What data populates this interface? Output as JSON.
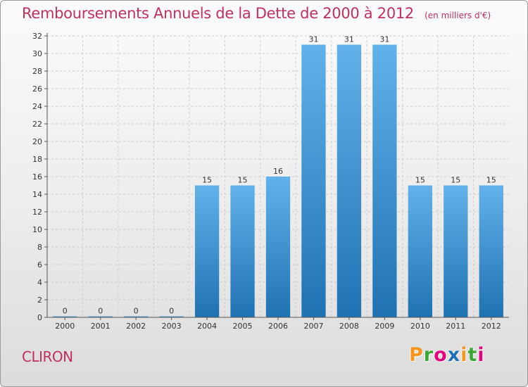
{
  "header": {
    "title": "Remboursements Annuels de la Dette de 2000 à 2012",
    "subtitle": "(en milliers d'€)"
  },
  "footer": {
    "commune": "CLIRON",
    "brand": "Proxiti",
    "brand_colors": [
      "#f7941d",
      "#3aa935",
      "#e6007e",
      "#1d71b8",
      "#f7941d",
      "#3aa935",
      "#e6007e"
    ]
  },
  "colors": {
    "title": "#c0305e",
    "bar_top": "#62b1ea",
    "bar_bottom": "#1f72b2",
    "grid": "#cccccc",
    "axis": "#555555"
  },
  "chart_data": {
    "type": "bar",
    "title": "Remboursements Annuels de la Dette de 2000 à 2012",
    "subtitle": "(en milliers d'€)",
    "xlabel": "",
    "ylabel": "",
    "categories": [
      "2000",
      "2001",
      "2002",
      "2003",
      "2004",
      "2005",
      "2006",
      "2007",
      "2008",
      "2009",
      "2010",
      "2011",
      "2012"
    ],
    "values": [
      0,
      0,
      0,
      0,
      15,
      15,
      16,
      31,
      31,
      31,
      15,
      15,
      15
    ],
    "data_labels": [
      "0",
      "0",
      "0",
      "0",
      "15",
      "15",
      "16",
      "31",
      "31",
      "31",
      "15",
      "15",
      "15"
    ],
    "ylim": [
      0,
      32
    ],
    "yticks": [
      0,
      2,
      4,
      6,
      8,
      10,
      12,
      14,
      16,
      18,
      20,
      22,
      24,
      26,
      28,
      30,
      32
    ],
    "grid": "horizontal dashed",
    "legend": "none"
  }
}
